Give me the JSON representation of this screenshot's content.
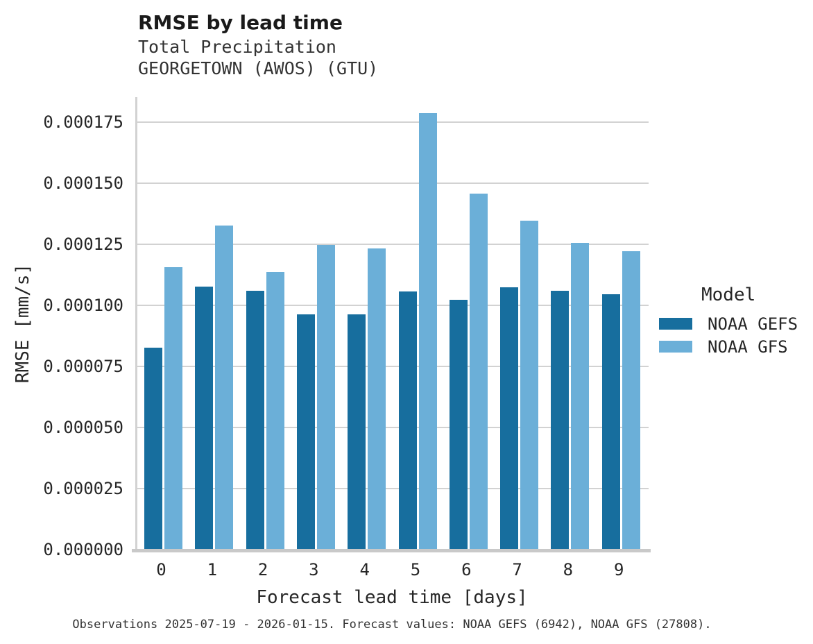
{
  "header": {
    "title": "RMSE by lead time",
    "subtitle1": "Total Precipitation",
    "subtitle2": "GEORGETOWN (AWOS) (GTU)"
  },
  "chart_data": {
    "type": "bar",
    "title": "RMSE by lead time",
    "subtitle": [
      "Total Precipitation",
      "GEORGETOWN (AWOS) (GTU)"
    ],
    "categories": [
      "0",
      "1",
      "2",
      "3",
      "4",
      "5",
      "6",
      "7",
      "8",
      "9"
    ],
    "xlabel": "Forecast lead time [days]",
    "ylabel": "RMSE [mm/s]",
    "ylim": [
      0,
      0.0001852
    ],
    "ytick_step": 2.5e-05,
    "ytick_labels": [
      "0.000000",
      "0.000025",
      "0.000050",
      "0.000075",
      "0.000100",
      "0.000125",
      "0.000150",
      "0.000175"
    ],
    "grid": "horizontal",
    "legend": {
      "title": "Model",
      "position": "right"
    },
    "series": [
      {
        "name": "NOAA GEFS",
        "color": "#176E9E",
        "values": [
          8.27e-05,
          0.0001077,
          0.000106,
          9.63e-05,
          9.63e-05,
          0.0001057,
          0.0001023,
          0.0001074,
          0.000106,
          0.0001046
        ]
      },
      {
        "name": "NOAA GFS",
        "color": "#6BAFD8",
        "values": [
          0.0001156,
          0.0001327,
          0.0001136,
          0.0001247,
          0.0001233,
          0.0001787,
          0.0001457,
          0.0001347,
          0.0001256,
          0.0001222
        ]
      }
    ],
    "colors": {
      "gridline": "#d2d2d2",
      "axis_line": "#c9c9c9",
      "text": "#262626"
    }
  },
  "caption": "Observations 2025-07-19 - 2026-01-15. Forecast values: NOAA GEFS (6942), NOAA GFS (27808)."
}
